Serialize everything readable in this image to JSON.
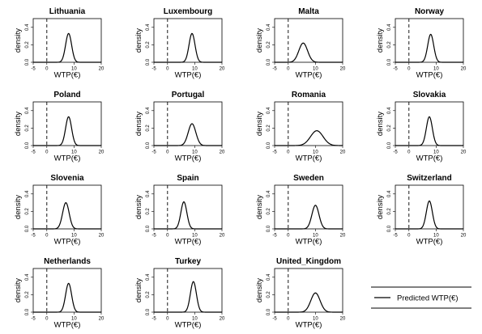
{
  "chart_data": {
    "type": "line",
    "xlabel": "WTP(€)",
    "ylabel": "density",
    "xlim": [
      -5,
      20
    ],
    "ylim": [
      0,
      0.5
    ],
    "x_ticks": [
      "-5",
      "0",
      "10",
      "20"
    ],
    "y_ticks": [
      "0.0",
      "0.2",
      "0.4"
    ],
    "reference_line_x": 0,
    "legend": {
      "label": "Predicted WTP(€)",
      "position": "bottom-right"
    },
    "panels": [
      {
        "title": "Lithuania",
        "peak_x": 8.0,
        "peak_density": 0.33,
        "sd": 1.1
      },
      {
        "title": "Luxembourg",
        "peak_x": 9.0,
        "peak_density": 0.33,
        "sd": 1.1
      },
      {
        "title": "Malta",
        "peak_x": 5.5,
        "peak_density": 0.22,
        "sd": 1.6
      },
      {
        "title": "Norway",
        "peak_x": 8.0,
        "peak_density": 0.32,
        "sd": 1.1
      },
      {
        "title": "Poland",
        "peak_x": 8.0,
        "peak_density": 0.33,
        "sd": 1.1
      },
      {
        "title": "Portugal",
        "peak_x": 9.0,
        "peak_density": 0.25,
        "sd": 1.4
      },
      {
        "title": "Romania",
        "peak_x": 10.5,
        "peak_density": 0.17,
        "sd": 2.3
      },
      {
        "title": "Slovakia",
        "peak_x": 7.5,
        "peak_density": 0.33,
        "sd": 1.1
      },
      {
        "title": "Slovenia",
        "peak_x": 7.0,
        "peak_density": 0.3,
        "sd": 1.2
      },
      {
        "title": "Spain",
        "peak_x": 6.0,
        "peak_density": 0.31,
        "sd": 1.1
      },
      {
        "title": "Sweden",
        "peak_x": 10.0,
        "peak_density": 0.27,
        "sd": 1.3
      },
      {
        "title": "Switzerland",
        "peak_x": 7.5,
        "peak_density": 0.32,
        "sd": 1.1
      },
      {
        "title": "Netherlands",
        "peak_x": 8.0,
        "peak_density": 0.33,
        "sd": 1.1
      },
      {
        "title": "Turkey",
        "peak_x": 9.5,
        "peak_density": 0.35,
        "sd": 1.1
      },
      {
        "title": "United_Kingdom",
        "peak_x": 10.0,
        "peak_density": 0.22,
        "sd": 1.7
      }
    ]
  }
}
